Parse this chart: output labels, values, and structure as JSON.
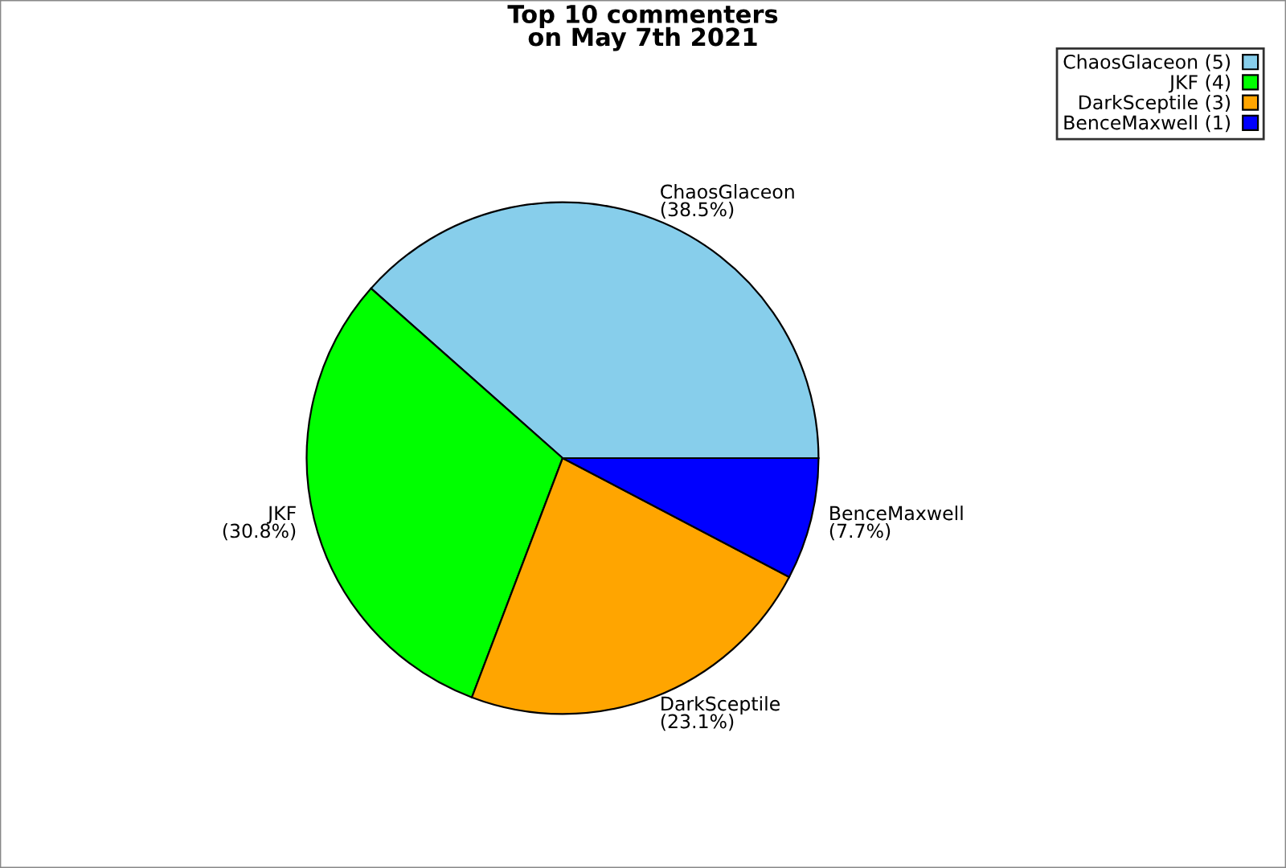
{
  "chart_data": {
    "type": "pie",
    "title": "Top 10 commenters\non May 7th 2021",
    "categories": [
      "ChaosGlaceon (5)",
      "JKF (4)",
      "DarkSceptile (3)",
      "BenceMaxwell (1)"
    ],
    "values": [
      38.5,
      30.8,
      23.1,
      7.7
    ],
    "value_labels": [
      "ChaosGlaceon\n(38.5%)",
      "JKF\n(30.8%)",
      "DarkSceptile\n(23.1%)",
      "BenceMaxwell\n(7.7%)"
    ],
    "colors": [
      "#87ceeb",
      "#00ff00",
      "#ffa500",
      "#0000ff"
    ],
    "legend": "top right"
  }
}
